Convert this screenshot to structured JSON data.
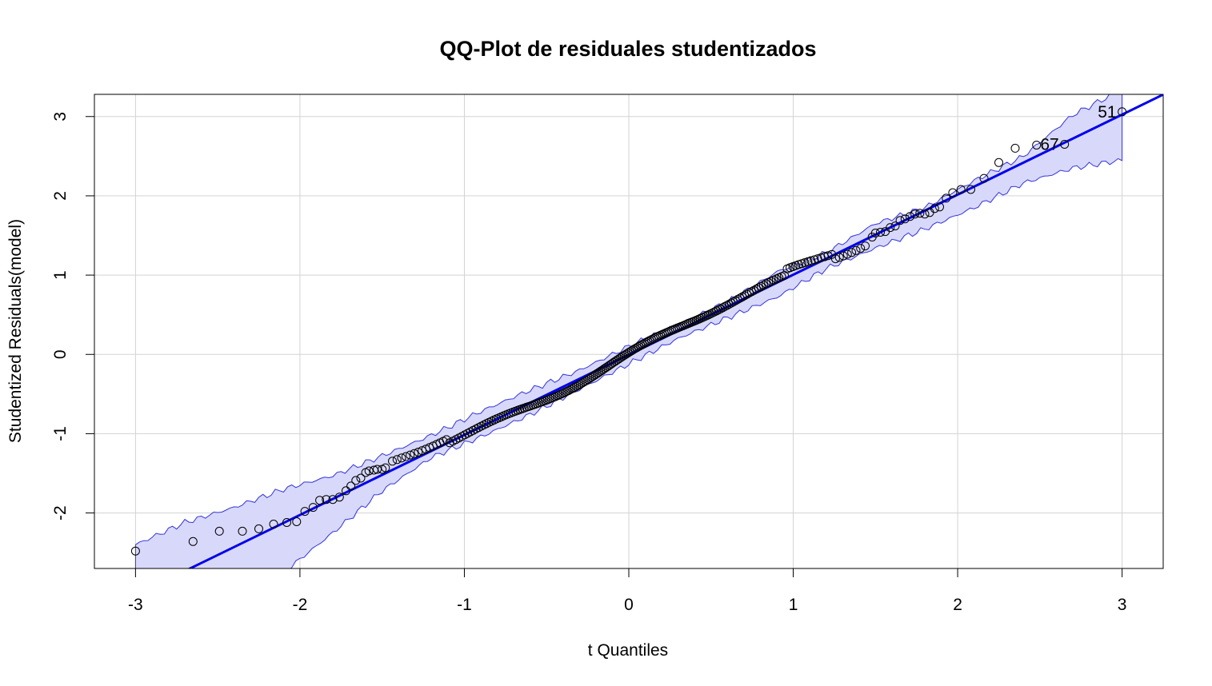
{
  "chart_data": {
    "type": "scatter",
    "title": "QQ-Plot de residuales studentizados",
    "xlabel": "t Quantiles",
    "ylabel": "Studentized Residuals(model)",
    "xlim": [
      -3.25,
      3.25
    ],
    "ylim": [
      -2.7,
      3.28
    ],
    "x_ticks": [
      -3,
      -2,
      -1,
      0,
      1,
      2,
      3
    ],
    "y_ticks": [
      -2,
      -1,
      0,
      1,
      2,
      3
    ],
    "grid": true,
    "colors": {
      "line": "#0000ee",
      "band_fill": "#d8d8fa",
      "band_stroke": "#3333dd",
      "points": "#000000",
      "grid": "#d3d3d3"
    },
    "reference_line": {
      "intercept": -0.005,
      "slope": 1.01
    },
    "tail_points": [
      {
        "x": -3.0,
        "y": -2.48
      },
      {
        "x": -2.65,
        "y": -2.36
      },
      {
        "x": -2.49,
        "y": -2.23
      },
      {
        "x": -2.35,
        "y": -2.23
      },
      {
        "x": -2.25,
        "y": -2.2
      },
      {
        "x": -2.16,
        "y": -2.14
      },
      {
        "x": -2.08,
        "y": -2.12
      },
      {
        "x": -2.02,
        "y": -2.11
      },
      {
        "x": -1.97,
        "y": -1.98
      },
      {
        "x": -1.92,
        "y": -1.93
      },
      {
        "x": -1.88,
        "y": -1.84
      },
      {
        "x": -1.84,
        "y": -1.83
      },
      {
        "x": -1.8,
        "y": -1.83
      },
      {
        "x": -1.76,
        "y": -1.8
      },
      {
        "x": -1.72,
        "y": -1.72
      },
      {
        "x": -1.69,
        "y": -1.66
      },
      {
        "x": -1.66,
        "y": -1.59
      },
      {
        "x": -1.63,
        "y": -1.56
      },
      {
        "x": -1.6,
        "y": -1.49
      },
      {
        "x": -1.58,
        "y": -1.47
      },
      {
        "x": -1.55,
        "y": -1.46
      },
      {
        "x": -1.53,
        "y": -1.45
      },
      {
        "x": -1.5,
        "y": -1.45
      },
      {
        "x": -1.48,
        "y": -1.43
      },
      {
        "x": 1.48,
        "y": 1.48
      },
      {
        "x": 1.5,
        "y": 1.53
      },
      {
        "x": 1.53,
        "y": 1.54
      },
      {
        "x": 1.56,
        "y": 1.55
      },
      {
        "x": 1.59,
        "y": 1.6
      },
      {
        "x": 1.62,
        "y": 1.62
      },
      {
        "x": 1.65,
        "y": 1.69
      },
      {
        "x": 1.68,
        "y": 1.71
      },
      {
        "x": 1.71,
        "y": 1.74
      },
      {
        "x": 1.74,
        "y": 1.77
      },
      {
        "x": 1.77,
        "y": 1.78
      },
      {
        "x": 1.8,
        "y": 1.77
      },
      {
        "x": 1.83,
        "y": 1.79
      },
      {
        "x": 1.86,
        "y": 1.84
      },
      {
        "x": 1.89,
        "y": 1.86
      },
      {
        "x": 1.93,
        "y": 1.97
      },
      {
        "x": 1.97,
        "y": 2.04
      },
      {
        "x": 2.02,
        "y": 2.08
      },
      {
        "x": 2.08,
        "y": 2.08
      },
      {
        "x": 2.16,
        "y": 2.22
      },
      {
        "x": 2.25,
        "y": 2.42
      },
      {
        "x": 2.35,
        "y": 2.6
      },
      {
        "x": 2.48,
        "y": 2.64
      },
      {
        "x": 2.65,
        "y": 2.65
      },
      {
        "x": 3.0,
        "y": 3.06
      }
    ],
    "point_labels": [
      {
        "text": "51",
        "x": 3.0,
        "y": 3.06
      },
      {
        "text": "67",
        "x": 2.65,
        "y": 2.65
      }
    ],
    "confidence_band": {
      "x": [
        -3.0,
        -2.7,
        -2.4,
        -2.1,
        -1.8,
        -1.5,
        -1.2,
        -0.9,
        -0.6,
        -0.3,
        0.0,
        0.3,
        0.6,
        0.9,
        1.2,
        1.5,
        1.8,
        2.1,
        2.4,
        2.7,
        3.0
      ],
      "upper": [
        -2.4,
        -2.12,
        -1.93,
        -1.7,
        -1.53,
        -1.28,
        -1.02,
        -0.72,
        -0.45,
        -0.2,
        0.1,
        0.38,
        0.66,
        1.04,
        1.28,
        1.65,
        1.85,
        2.19,
        2.5,
        3.02,
        3.34
      ],
      "lower": [
        -3.9,
        -3.55,
        -3.2,
        -2.75,
        -2.25,
        -1.72,
        -1.3,
        -1.04,
        -0.76,
        -0.44,
        -0.12,
        0.2,
        0.46,
        0.72,
        1.08,
        1.34,
        1.58,
        1.85,
        2.16,
        2.35,
        2.45
      ]
    }
  }
}
